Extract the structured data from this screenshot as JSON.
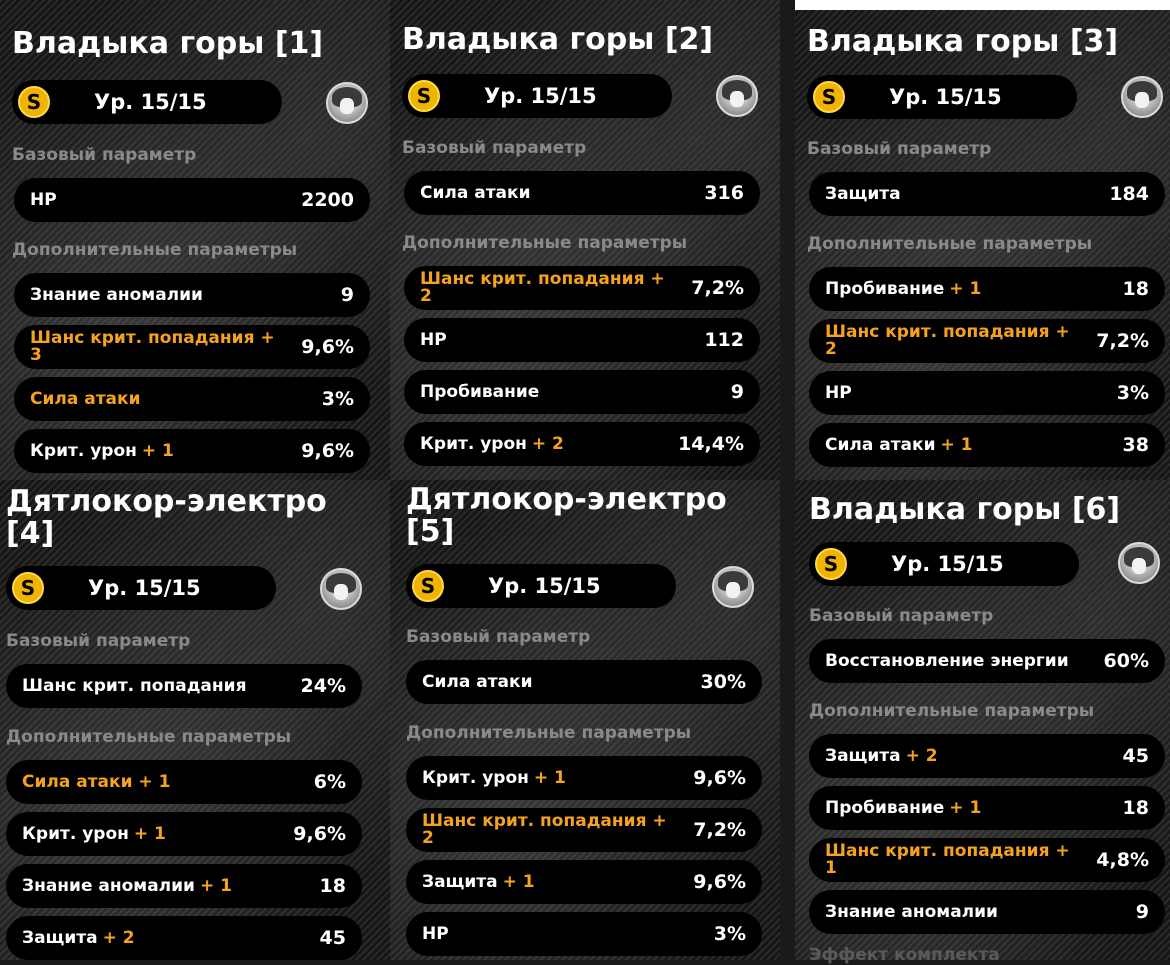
{
  "level_label": "Ур. 15/15",
  "base_label": "Базовый параметр",
  "extra_label": "Дополнительные параметры",
  "coin_glyph": "S",
  "panels": [
    {
      "title": "Владыка горы [1]",
      "base": {
        "name": "HP",
        "value": "2200"
      },
      "subs": [
        {
          "name": "Знание аномалии",
          "bonus": "",
          "value": "9",
          "highlight": false
        },
        {
          "name": "Шанс крит. попадания",
          "bonus": "+ 3",
          "value": "9,6%",
          "highlight": true
        },
        {
          "name": "Сила атаки",
          "bonus": "",
          "value": "3%",
          "highlight": true
        },
        {
          "name": "Крит. урон",
          "bonus": "+ 1",
          "value": "9,6%",
          "highlight": false
        }
      ]
    },
    {
      "title": "Владыка горы [2]",
      "base": {
        "name": "Сила атаки",
        "value": "316"
      },
      "subs": [
        {
          "name": "Шанс крит. попадания",
          "bonus": "+ 2",
          "value": "7,2%",
          "highlight": true
        },
        {
          "name": "HP",
          "bonus": "",
          "value": "112",
          "highlight": false
        },
        {
          "name": "Пробивание",
          "bonus": "",
          "value": "9",
          "highlight": false
        },
        {
          "name": "Крит. урон",
          "bonus": "+ 2",
          "value": "14,4%",
          "highlight": false
        }
      ]
    },
    {
      "title": "Владыка горы [3]",
      "base": {
        "name": "Защита",
        "value": "184"
      },
      "subs": [
        {
          "name": "Пробивание",
          "bonus": "+ 1",
          "value": "18",
          "highlight": false
        },
        {
          "name": "Шанс крит. попадания",
          "bonus": "+ 2",
          "value": "7,2%",
          "highlight": true
        },
        {
          "name": "HP",
          "bonus": "",
          "value": "3%",
          "highlight": false
        },
        {
          "name": "Сила атаки",
          "bonus": "+ 1",
          "value": "38",
          "highlight": false
        }
      ]
    },
    {
      "title": "Дятлокор-электро [4]",
      "base": {
        "name": "Шанс крит. попадания",
        "value": "24%"
      },
      "subs": [
        {
          "name": "Сила атаки",
          "bonus": "+ 1",
          "value": "6%",
          "highlight": true
        },
        {
          "name": "Крит. урон",
          "bonus": "+ 1",
          "value": "9,6%",
          "highlight": false
        },
        {
          "name": "Знание аномалии",
          "bonus": "+ 1",
          "value": "18",
          "highlight": false
        },
        {
          "name": "Защита",
          "bonus": "+ 2",
          "value": "45",
          "highlight": false
        }
      ]
    },
    {
      "title": "Дятлокор-электро [5]",
      "base": {
        "name": "Сила атаки",
        "value": "30%"
      },
      "subs": [
        {
          "name": "Крит. урон",
          "bonus": "+ 1",
          "value": "9,6%",
          "highlight": false
        },
        {
          "name": "Шанс крит. попадания",
          "bonus": "+ 2",
          "value": "7,2%",
          "highlight": true
        },
        {
          "name": "Защита",
          "bonus": "+ 1",
          "value": "9,6%",
          "highlight": false
        },
        {
          "name": "HP",
          "bonus": "",
          "value": "3%",
          "highlight": false
        }
      ]
    },
    {
      "title": "Владыка горы [6]",
      "base": {
        "name": "Восстановление энергии",
        "value": "60%"
      },
      "subs": [
        {
          "name": "Защита",
          "bonus": "+ 2",
          "value": "45",
          "highlight": false
        },
        {
          "name": "Пробивание",
          "bonus": "+ 1",
          "value": "18",
          "highlight": false
        },
        {
          "name": "Шанс крит. попадания",
          "bonus": "+ 1",
          "value": "4,8%",
          "highlight": true
        },
        {
          "name": "Знание аномалии",
          "bonus": "",
          "value": "9",
          "highlight": false
        }
      ]
    }
  ],
  "footer_cut_text": "Эффект комплекта",
  "colors": {
    "highlight": "#f5a21f",
    "pill": "#000000",
    "muted": "#8a8a8a",
    "coin": "#f0b400"
  }
}
